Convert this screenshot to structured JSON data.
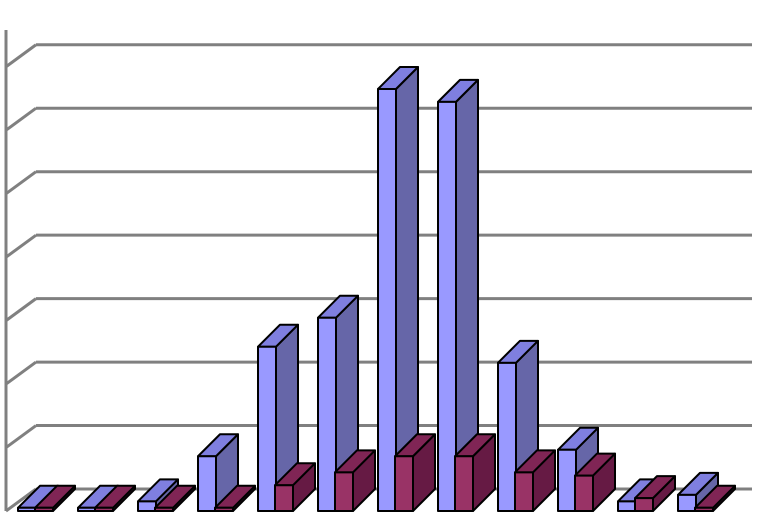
{
  "chart_data": {
    "type": "bar",
    "style": "3d-clustered-column",
    "grid": true,
    "legend": "none",
    "categories": [
      "",
      "",
      "",
      "",
      "",
      "",
      "",
      "",
      "",
      "",
      "",
      ""
    ],
    "ylim": [
      0,
      14
    ],
    "series": [
      {
        "color_front": "#9999FF",
        "color_top": "#7F7FE0",
        "color_side": "#6666A8",
        "values": [
          0.1,
          0.1,
          0.3,
          1.7,
          5.1,
          6.0,
          13.1,
          12.7,
          4.6,
          1.9,
          0.3,
          0.5
        ]
      },
      {
        "color_front": "#993366",
        "color_top": "#802555",
        "color_side": "#661A44",
        "values": [
          0.1,
          0.1,
          0.1,
          0.1,
          0.8,
          1.2,
          1.7,
          1.7,
          1.2,
          1.1,
          0.4,
          0.1
        ]
      }
    ]
  }
}
